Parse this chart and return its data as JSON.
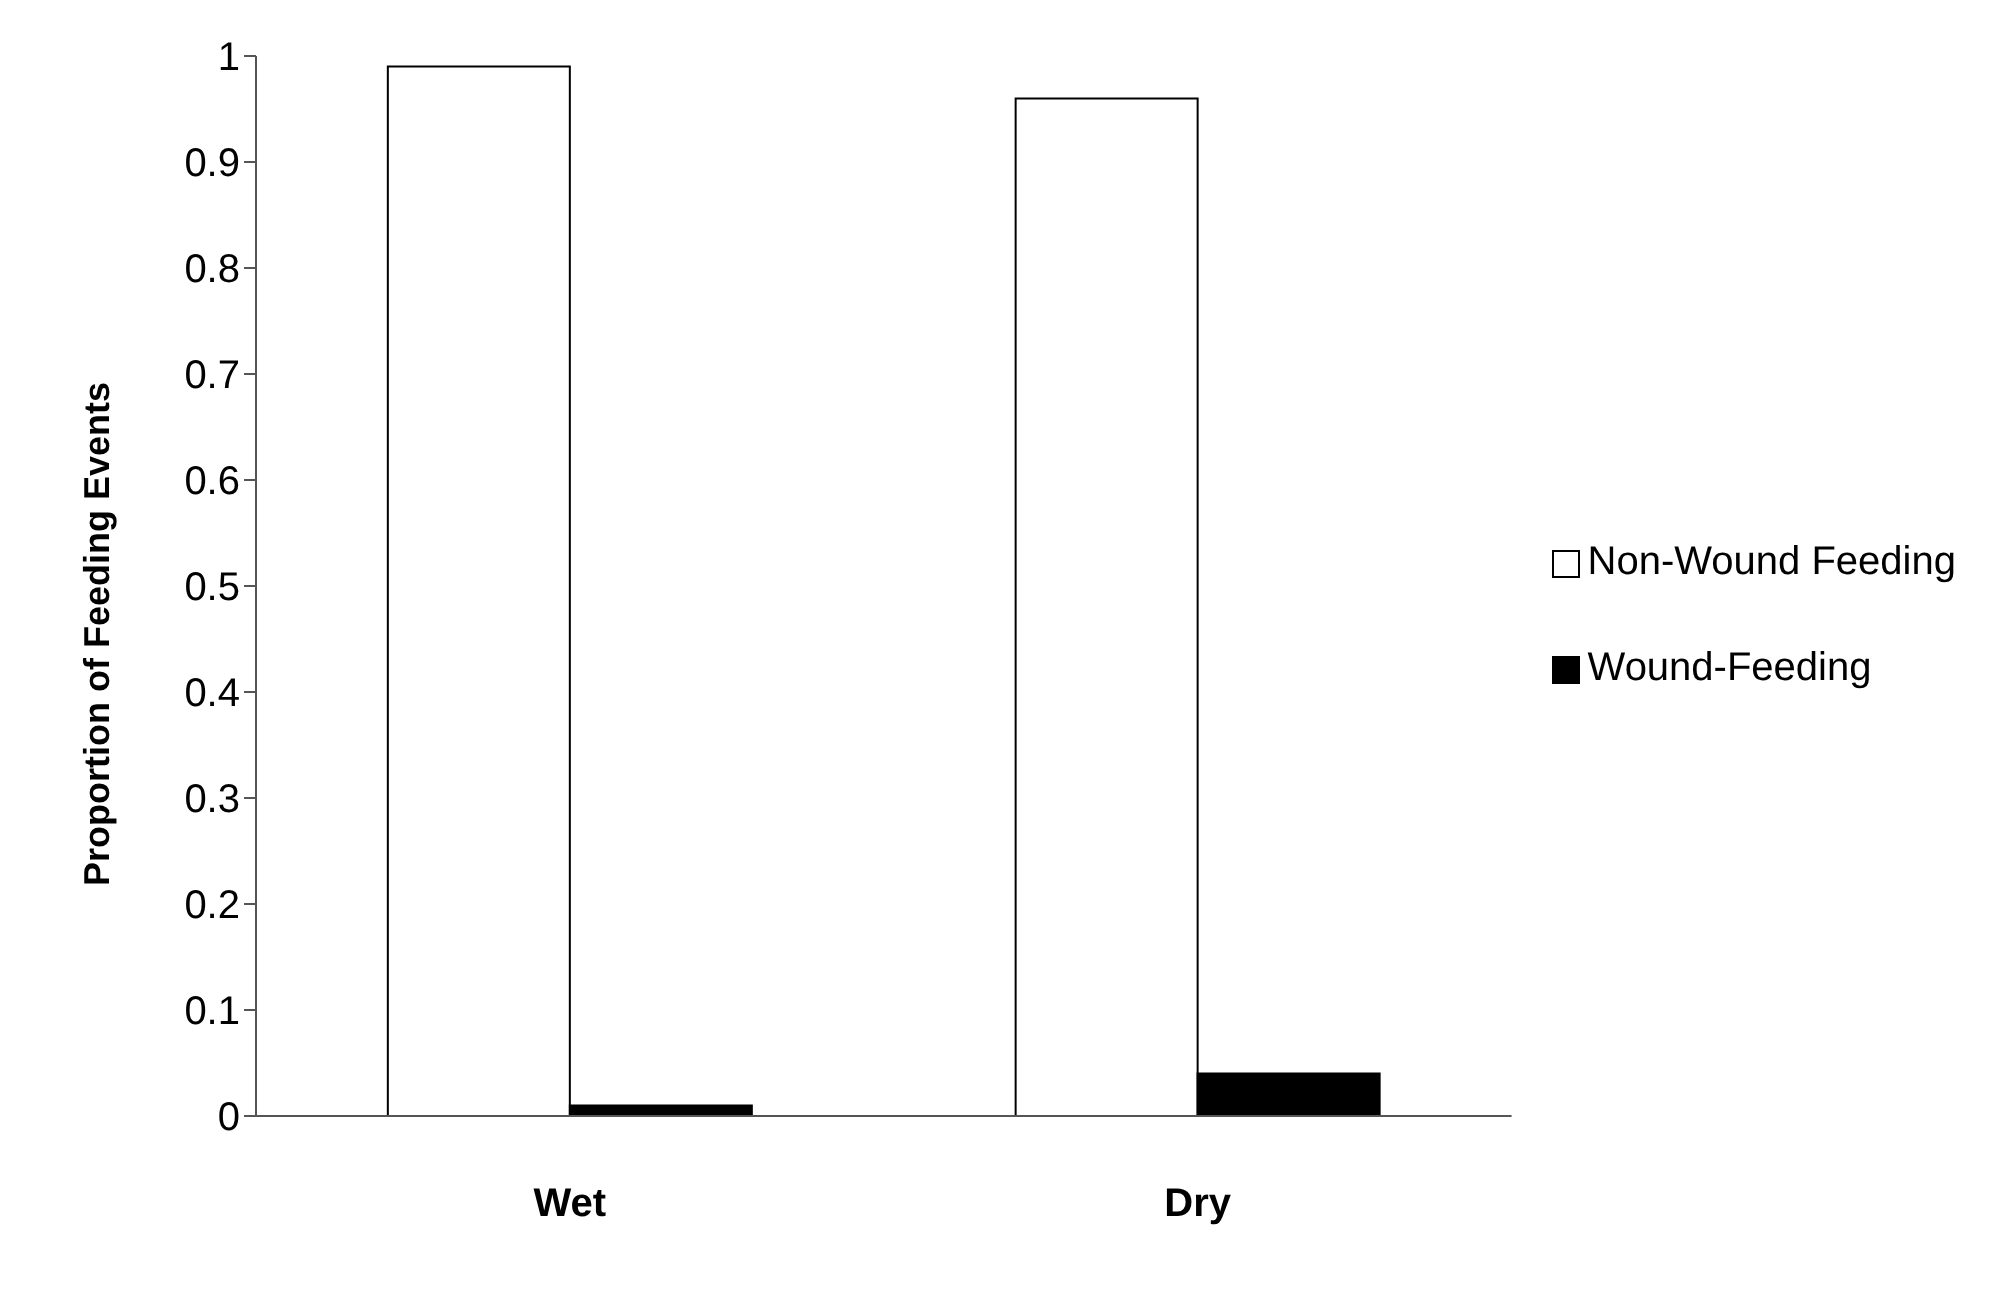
{
  "chart_data": {
    "type": "bar",
    "ylabel": "Proportion of Feeding Events",
    "categories": [
      "Wet",
      "Dry"
    ],
    "series": [
      {
        "name": "Non-Wound Feeding",
        "color": "#ffffff",
        "values": [
          0.99,
          0.96
        ]
      },
      {
        "name": "Wound-Feeding",
        "color": "#000000",
        "values": [
          0.01,
          0.04
        ]
      }
    ],
    "ylim": [
      0,
      1
    ],
    "yticks": [
      0,
      0.1,
      0.2,
      0.3,
      0.4,
      0.5,
      0.6,
      0.7,
      0.8,
      0.9,
      1
    ],
    "grid": false,
    "legend": "right"
  }
}
